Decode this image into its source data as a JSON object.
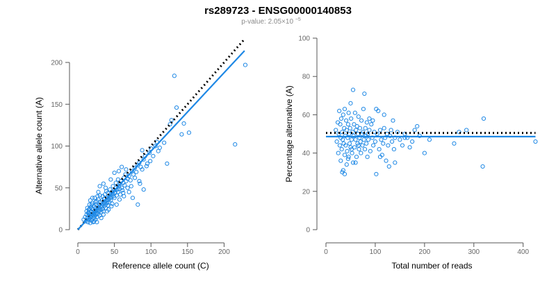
{
  "header": {
    "title": "rs289723 - ENSG00000140853",
    "subtitle_prefix": "p-value: 2.05×10",
    "subtitle_exp": "−5"
  },
  "colors": {
    "points": "#1e88e5",
    "fit": "#1e88e5",
    "reference": "#000000"
  },
  "chart_data": [
    {
      "type": "scatter",
      "xlabel": "Reference allele count (C)",
      "ylabel": "Alternative allele count (A)",
      "xlim": [
        0,
        230
      ],
      "ylim": [
        0,
        200
      ],
      "xticks": [
        0,
        50,
        100,
        150,
        200
      ],
      "yticks": [
        0,
        50,
        100,
        150,
        200
      ],
      "points": [
        [
          8,
          12
        ],
        [
          10,
          15
        ],
        [
          11,
          10
        ],
        [
          12,
          18
        ],
        [
          12,
          22
        ],
        [
          13,
          14
        ],
        [
          13,
          26
        ],
        [
          14,
          9
        ],
        [
          14,
          20
        ],
        [
          15,
          12
        ],
        [
          15,
          17
        ],
        [
          15,
          24
        ],
        [
          16,
          30
        ],
        [
          16,
          13
        ],
        [
          17,
          19
        ],
        [
          17,
          8
        ],
        [
          17,
          35
        ],
        [
          18,
          15
        ],
        [
          18,
          22
        ],
        [
          18,
          27
        ],
        [
          19,
          11
        ],
        [
          19,
          18
        ],
        [
          19,
          25
        ],
        [
          20,
          13
        ],
        [
          20,
          20
        ],
        [
          20,
          32
        ],
        [
          21,
          17
        ],
        [
          21,
          9
        ],
        [
          21,
          24
        ],
        [
          22,
          14
        ],
        [
          22,
          28
        ],
        [
          22,
          19
        ],
        [
          23,
          16
        ],
        [
          23,
          22
        ],
        [
          23,
          38
        ],
        [
          24,
          12
        ],
        [
          24,
          26
        ],
        [
          25,
          18
        ],
        [
          25,
          30
        ],
        [
          25,
          23
        ],
        [
          26,
          20
        ],
        [
          26,
          15
        ],
        [
          26,
          34
        ],
        [
          27,
          24
        ],
        [
          27,
          28
        ],
        [
          28,
          19
        ],
        [
          28,
          36
        ],
        [
          29,
          22
        ],
        [
          29,
          26
        ],
        [
          30,
          30
        ],
        [
          30,
          17
        ],
        [
          30,
          41
        ],
        [
          31,
          24
        ],
        [
          31,
          33
        ],
        [
          32,
          27
        ],
        [
          32,
          21
        ],
        [
          33,
          35
        ],
        [
          33,
          29
        ],
        [
          34,
          25
        ],
        [
          34,
          40
        ],
        [
          35,
          31
        ],
        [
          35,
          22
        ],
        [
          36,
          28
        ],
        [
          36,
          37
        ],
        [
          37,
          33
        ],
        [
          37,
          42
        ],
        [
          38,
          26
        ],
        [
          38,
          30
        ],
        [
          39,
          35
        ],
        [
          39,
          46
        ],
        [
          40,
          32
        ],
        [
          40,
          38
        ],
        [
          41,
          29
        ],
        [
          41,
          44
        ],
        [
          42,
          36
        ],
        [
          43,
          40
        ],
        [
          43,
          33
        ],
        [
          44,
          38
        ],
        [
          44,
          48
        ],
        [
          45,
          35
        ],
        [
          45,
          42
        ],
        [
          46,
          39
        ],
        [
          47,
          45
        ],
        [
          47,
          31
        ],
        [
          48,
          43
        ],
        [
          48,
          52
        ],
        [
          49,
          40
        ],
        [
          50,
          47
        ],
        [
          50,
          38
        ],
        [
          51,
          44
        ],
        [
          52,
          50
        ],
        [
          52,
          56
        ],
        [
          53,
          41
        ],
        [
          54,
          48
        ],
        [
          55,
          45
        ],
        [
          55,
          60
        ],
        [
          56,
          52
        ],
        [
          57,
          49
        ],
        [
          58,
          55
        ],
        [
          58,
          42
        ],
        [
          59,
          58
        ],
        [
          60,
          50
        ],
        [
          61,
          47
        ],
        [
          62,
          56
        ],
        [
          63,
          62
        ],
        [
          64,
          53
        ],
        [
          65,
          66
        ],
        [
          66,
          58
        ],
        [
          68,
          61
        ],
        [
          70,
          64
        ],
        [
          72,
          59
        ],
        [
          74,
          70
        ],
        [
          76,
          66
        ],
        [
          78,
          74
        ],
        [
          80,
          69
        ],
        [
          82,
          77
        ],
        [
          84,
          80
        ],
        [
          86,
          75
        ],
        [
          88,
          95
        ],
        [
          90,
          84
        ],
        [
          92,
          88
        ],
        [
          95,
          79
        ],
        [
          98,
          92
        ],
        [
          100,
          97
        ],
        [
          103,
          88
        ],
        [
          106,
          100
        ],
        [
          110,
          94
        ],
        [
          40,
          22
        ],
        [
          45,
          60
        ],
        [
          50,
          68
        ],
        [
          56,
          70
        ],
        [
          62,
          44
        ],
        [
          68,
          50
        ],
        [
          75,
          38
        ],
        [
          82,
          30
        ],
        [
          85,
          55
        ],
        [
          90,
          48
        ],
        [
          60,
          75
        ],
        [
          30,
          52
        ],
        [
          28,
          45
        ],
        [
          20,
          38
        ],
        [
          35,
          55
        ],
        [
          15,
          20
        ],
        [
          16,
          25
        ],
        [
          18,
          12
        ],
        [
          19,
          30
        ],
        [
          22,
          10
        ],
        [
          24,
          33
        ],
        [
          26,
          9
        ],
        [
          27,
          40
        ],
        [
          32,
          14
        ],
        [
          35,
          18
        ],
        [
          38,
          50
        ],
        [
          42,
          24
        ],
        [
          46,
          28
        ],
        [
          53,
          30
        ],
        [
          57,
          36
        ],
        [
          63,
          40
        ],
        [
          66,
          72
        ],
        [
          70,
          45
        ],
        [
          73,
          52
        ],
        [
          78,
          62
        ],
        [
          84,
          58
        ],
        [
          88,
          72
        ],
        [
          94,
          76
        ],
        [
          99,
          82
        ],
        [
          108,
          105
        ],
        [
          112,
          98
        ],
        [
          118,
          104
        ],
        [
          122,
          79
        ],
        [
          126,
          126
        ],
        [
          128,
          131
        ],
        [
          132,
          184
        ],
        [
          135,
          146
        ],
        [
          142,
          114
        ],
        [
          145,
          127
        ],
        [
          152,
          116
        ],
        [
          215,
          102
        ],
        [
          229,
          197
        ]
      ],
      "fit_line": [
        [
          0,
          0
        ],
        [
          228,
          214
        ]
      ],
      "reference_line": [
        [
          0,
          0
        ],
        [
          228,
          228
        ]
      ]
    },
    {
      "type": "scatter",
      "xlabel": "Total number of reads",
      "ylabel": "Percentage alternative (A)",
      "xlim": [
        0,
        430
      ],
      "ylim": [
        0,
        100
      ],
      "xticks": [
        0,
        100,
        200,
        300,
        400
      ],
      "yticks": [
        0,
        20,
        40,
        60,
        80,
        100
      ],
      "points": [
        [
          20,
          52
        ],
        [
          22,
          46
        ],
        [
          24,
          56
        ],
        [
          25,
          40
        ],
        [
          26,
          50
        ],
        [
          27,
          62
        ],
        [
          28,
          44
        ],
        [
          29,
          55
        ],
        [
          30,
          48
        ],
        [
          30,
          36
        ],
        [
          31,
          58
        ],
        [
          32,
          42
        ],
        [
          33,
          51
        ],
        [
          33,
          30
        ],
        [
          34,
          47
        ],
        [
          35,
          60
        ],
        [
          35,
          31
        ],
        [
          36,
          45
        ],
        [
          37,
          53
        ],
        [
          38,
          39
        ],
        [
          38,
          63
        ],
        [
          39,
          49
        ],
        [
          40,
          44
        ],
        [
          41,
          57
        ],
        [
          42,
          52
        ],
        [
          42,
          34
        ],
        [
          43,
          41
        ],
        [
          44,
          48
        ],
        [
          45,
          55
        ],
        [
          46,
          38
        ],
        [
          46,
          61
        ],
        [
          47,
          50
        ],
        [
          48,
          45
        ],
        [
          49,
          53
        ],
        [
          50,
          43
        ],
        [
          50,
          66
        ],
        [
          51,
          58
        ],
        [
          52,
          47
        ],
        [
          53,
          40
        ],
        [
          54,
          51
        ],
        [
          55,
          73
        ],
        [
          55,
          35
        ],
        [
          56,
          49
        ],
        [
          57,
          55
        ],
        [
          58,
          43
        ],
        [
          59,
          61
        ],
        [
          60,
          47
        ],
        [
          61,
          52
        ],
        [
          62,
          38
        ],
        [
          63,
          54
        ],
        [
          64,
          45
        ],
        [
          65,
          50
        ],
        [
          66,
          59
        ],
        [
          67,
          42
        ],
        [
          68,
          48
        ],
        [
          69,
          53
        ],
        [
          70,
          46
        ],
        [
          71,
          40
        ],
        [
          72,
          57
        ],
        [
          73,
          50
        ],
        [
          74,
          44
        ],
        [
          75,
          51
        ],
        [
          76,
          63
        ],
        [
          77,
          47
        ],
        [
          78,
          71
        ],
        [
          79,
          42
        ],
        [
          80,
          53
        ],
        [
          81,
          49
        ],
        [
          82,
          45
        ],
        [
          83,
          56
        ],
        [
          84,
          38
        ],
        [
          85,
          50
        ],
        [
          86,
          47
        ],
        [
          88,
          52
        ],
        [
          90,
          41
        ],
        [
          92,
          55
        ],
        [
          94,
          48
        ],
        [
          96,
          44
        ],
        [
          98,
          51
        ],
        [
          100,
          46
        ],
        [
          102,
          63
        ],
        [
          104,
          50
        ],
        [
          106,
          62
        ],
        [
          108,
          42
        ],
        [
          110,
          52
        ],
        [
          112,
          47
        ],
        [
          114,
          39
        ],
        [
          116,
          45
        ],
        [
          118,
          53
        ],
        [
          120,
          48
        ],
        [
          122,
          36
        ],
        [
          124,
          50
        ],
        [
          126,
          44
        ],
        [
          128,
          33
        ],
        [
          130,
          49
        ],
        [
          132,
          52
        ],
        [
          134,
          46
        ],
        [
          136,
          57
        ],
        [
          138,
          42
        ],
        [
          140,
          48
        ],
        [
          145,
          51
        ],
        [
          150,
          47
        ],
        [
          155,
          44
        ],
        [
          160,
          50
        ],
        [
          165,
          48
        ],
        [
          170,
          43
        ],
        [
          175,
          46
        ],
        [
          180,
          52
        ],
        [
          185,
          54
        ],
        [
          190,
          49
        ],
        [
          200,
          40
        ],
        [
          210,
          47
        ],
        [
          260,
          45
        ],
        [
          270,
          51
        ],
        [
          285,
          52
        ],
        [
          318,
          33
        ],
        [
          320,
          58
        ],
        [
          425,
          46
        ],
        [
          102,
          29
        ],
        [
          60,
          35
        ],
        [
          45,
          37
        ],
        [
          38,
          29
        ],
        [
          52,
          42
        ],
        [
          66,
          44
        ],
        [
          88,
          58
        ],
        [
          95,
          57
        ],
        [
          110,
          38
        ],
        [
          140,
          35
        ],
        [
          160,
          48
        ],
        [
          118,
          60
        ]
      ],
      "fit_line": [
        [
          0,
          48.6
        ],
        [
          425,
          48.6
        ]
      ],
      "reference_line": [
        [
          0,
          50.5
        ],
        [
          425,
          50.5
        ]
      ]
    }
  ]
}
